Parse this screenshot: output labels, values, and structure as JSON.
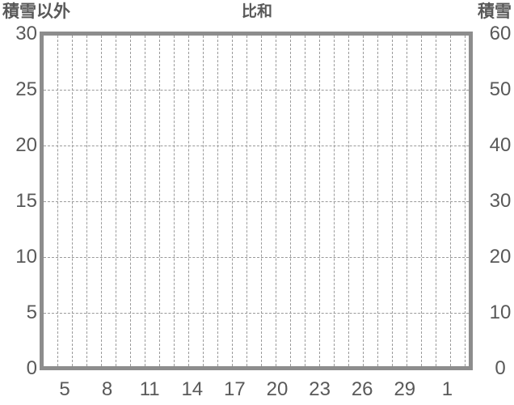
{
  "colors": {
    "text": "#595959",
    "plot_border": "#8d8d8d",
    "gridline": "#9a9a9a",
    "background": "#ffffff"
  },
  "chart_data": {
    "type": "line",
    "title": "比和",
    "series": [],
    "plot_empty": true,
    "left_axis": {
      "label": "積雪以外",
      "min": 0,
      "max": 30,
      "tick_interval": 5,
      "ticks": [
        "30",
        "25",
        "20",
        "15",
        "10",
        "5",
        "0"
      ]
    },
    "right_axis": {
      "label": "積雪",
      "min": 0,
      "max": 60,
      "tick_interval": 10,
      "ticks": [
        "60",
        "50",
        "40",
        "30",
        "20",
        "10",
        "0"
      ]
    },
    "x_axis": {
      "tick_labels": [
        "5",
        "8",
        "11",
        "14",
        "17",
        "20",
        "23",
        "26",
        "29",
        "1"
      ],
      "days_per_label": 3,
      "vertical_gridline_count": 29
    },
    "grid": {
      "horizontal": true,
      "vertical": true,
      "style": "dashed"
    },
    "legend": "none"
  }
}
